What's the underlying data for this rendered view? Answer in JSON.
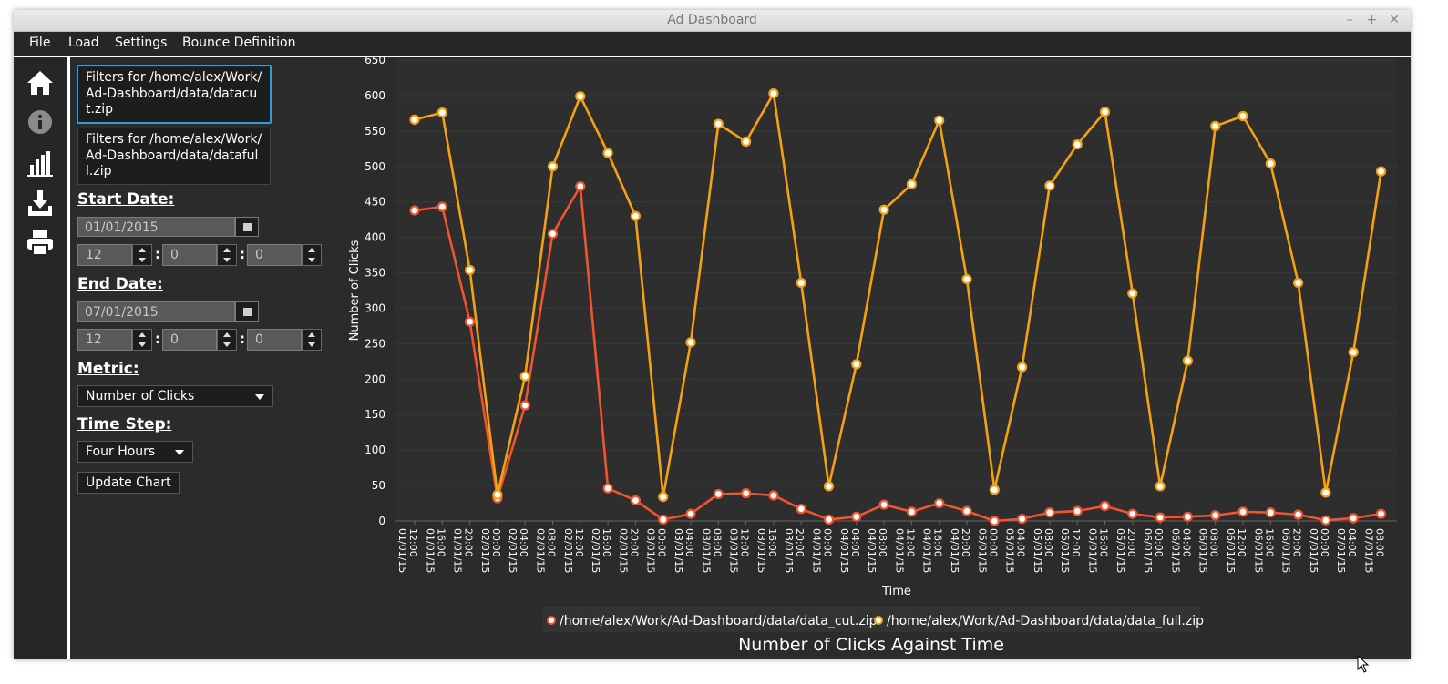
{
  "window": {
    "title": "Ad Dashboard",
    "controls": [
      "–",
      "+",
      "✕"
    ]
  },
  "menu": [
    "File",
    "Load",
    "Settings",
    "Bounce Definition"
  ],
  "sidebar_icons": [
    "home-icon",
    "info-icon",
    "bar-chart-icon",
    "download-icon",
    "print-icon"
  ],
  "filters": [
    "Filters for /home/alex/Work/Ad-Dashboard/data/datacut.zip",
    "Filters for /home/alex/Work/Ad-Dashboard/data/datafull.zip"
  ],
  "start": {
    "label": "Start Date:",
    "date": "01/01/2015",
    "hour": "12",
    "minute": "0",
    "second": "0"
  },
  "end": {
    "label": "End Date:",
    "date": "07/01/2015",
    "hour": "12",
    "minute": "0",
    "second": "0"
  },
  "metric": {
    "label": "Metric:",
    "value": "Number of Clicks"
  },
  "timestep": {
    "label": "Time Step:",
    "value": "Four Hours"
  },
  "update_button": "Update Chart",
  "colors": {
    "cut": "#f2542d",
    "full": "#f5a211",
    "background": "#2b2b2b"
  },
  "chart_data": {
    "type": "line",
    "title": "Number of Clicks Against Time",
    "xlabel": "Time",
    "ylabel": "Number of Clicks",
    "ylim": [
      0,
      650
    ],
    "yticks": [
      0,
      50,
      100,
      150,
      200,
      250,
      300,
      350,
      400,
      450,
      500,
      550,
      600,
      650
    ],
    "legend_position": "bottom",
    "categories": [
      "01/01/15 12:00",
      "01/01/15 16:00",
      "01/01/15 20:00",
      "02/01/15 00:00",
      "02/01/15 04:00",
      "02/01/15 08:00",
      "02/01/15 12:00",
      "02/01/15 16:00",
      "02/01/15 20:00",
      "03/01/15 00:00",
      "03/01/15 04:00",
      "03/01/15 08:00",
      "03/01/15 12:00",
      "03/01/15 16:00",
      "03/01/15 20:00",
      "04/01/15 00:00",
      "04/01/15 04:00",
      "04/01/15 08:00",
      "04/01/15 12:00",
      "04/01/15 16:00",
      "04/01/15 20:00",
      "05/01/15 00:00",
      "05/01/15 04:00",
      "05/01/15 08:00",
      "05/01/15 12:00",
      "05/01/15 16:00",
      "05/01/15 20:00",
      "06/01/15 00:00",
      "06/01/15 04:00",
      "06/01/15 08:00",
      "06/01/15 12:00",
      "06/01/15 16:00",
      "06/01/15 20:00",
      "07/01/15 00:00",
      "07/01/15 04:00",
      "07/01/15 08:00"
    ],
    "series": [
      {
        "name": "/home/alex/Work/Ad-Dashboard/data/data_cut.zip",
        "color": "#f2542d",
        "values": [
          438,
          443,
          281,
          32,
          163,
          405,
          472,
          46,
          29,
          2,
          10,
          38,
          39,
          36,
          17,
          2,
          6,
          23,
          13,
          25,
          14,
          0,
          3,
          12,
          14,
          21,
          10,
          5,
          6,
          8,
          13,
          12,
          9,
          1,
          4,
          10
        ]
      },
      {
        "name": "/home/alex/Work/Ad-Dashboard/data/data_full.zip",
        "color": "#f5a211",
        "values": [
          566,
          576,
          354,
          37,
          204,
          500,
          599,
          519,
          430,
          34,
          252,
          560,
          535,
          603,
          336,
          49,
          221,
          439,
          475,
          565,
          341,
          44,
          217,
          473,
          531,
          577,
          321,
          49,
          226,
          557,
          571,
          504,
          336,
          40,
          238,
          493
        ]
      }
    ]
  }
}
